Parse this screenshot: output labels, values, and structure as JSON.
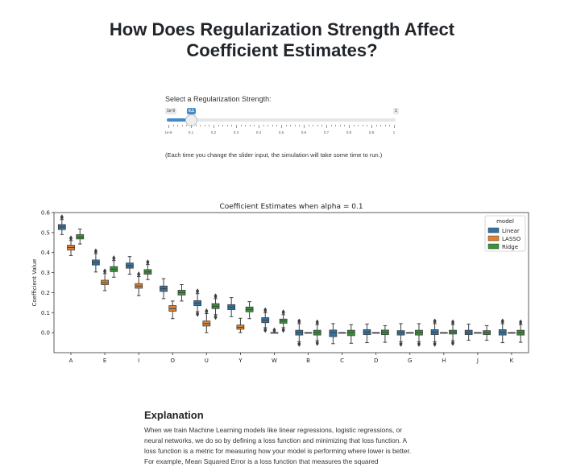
{
  "page": {
    "title_line1": "How Does Regularization Strength Affect",
    "title_line2": "Coefficient Estimates?"
  },
  "slider": {
    "label": "Select a Regularization Strength:",
    "min_label": "1e-9",
    "max_label": "1",
    "value_label": "0.1",
    "value": 0.1,
    "min": 0,
    "max": 1,
    "tick_labels": [
      "1e-9",
      "0.1",
      "0.2",
      "0.3",
      "0.4",
      "0.5",
      "0.6",
      "0.7",
      "0.8",
      "0.9",
      "1"
    ]
  },
  "note": "(Each time you change the slider input, the simulation will take some time to run.)",
  "chart_data": {
    "type": "box",
    "title": "Coefficient Estimates when alpha = 0.1",
    "xlabel": "",
    "ylabel": "Coefficient Value",
    "ylim": [
      -0.1,
      0.6
    ],
    "yticks": [
      0.0,
      0.1,
      0.2,
      0.3,
      0.4,
      0.5,
      0.6
    ],
    "ytick_labels": [
      "0.0",
      "0.1",
      "0.2",
      "0.3",
      "0.4",
      "0.5",
      "0.6"
    ],
    "categories": [
      "A",
      "E",
      "I",
      "O",
      "U",
      "Y",
      "W",
      "B",
      "C",
      "D",
      "G",
      "H",
      "J",
      "K"
    ],
    "legend": {
      "title": "model",
      "position": "top-right"
    },
    "series": [
      {
        "name": "Linear",
        "color": "#3274a1",
        "boxes": [
          {
            "q1": 0.515,
            "med": 0.528,
            "q3": 0.54,
            "lo": 0.49,
            "hi": 0.565,
            "out_hi": true,
            "out_lo": false
          },
          {
            "q1": 0.338,
            "med": 0.35,
            "q3": 0.363,
            "lo": 0.303,
            "hi": 0.395,
            "out_hi": true,
            "out_lo": false
          },
          {
            "q1": 0.322,
            "med": 0.335,
            "q3": 0.348,
            "lo": 0.292,
            "hi": 0.38,
            "out_hi": false,
            "out_lo": false
          },
          {
            "q1": 0.206,
            "med": 0.22,
            "q3": 0.233,
            "lo": 0.17,
            "hi": 0.27,
            "out_hi": false,
            "out_lo": false
          },
          {
            "q1": 0.135,
            "med": 0.148,
            "q3": 0.16,
            "lo": 0.105,
            "hi": 0.195,
            "out_hi": true,
            "out_lo": true
          },
          {
            "q1": 0.115,
            "med": 0.128,
            "q3": 0.14,
            "lo": 0.08,
            "hi": 0.175,
            "out_hi": false,
            "out_lo": false
          },
          {
            "q1": 0.05,
            "med": 0.062,
            "q3": 0.075,
            "lo": 0.025,
            "hi": 0.1,
            "out_hi": true,
            "out_lo": true
          },
          {
            "q1": -0.012,
            "med": 0.0,
            "q3": 0.012,
            "lo": -0.045,
            "hi": 0.045,
            "out_hi": true,
            "out_lo": true
          },
          {
            "q1": -0.02,
            "med": 0.0,
            "q3": 0.013,
            "lo": -0.055,
            "hi": 0.045,
            "out_hi": false,
            "out_lo": false
          },
          {
            "q1": -0.01,
            "med": 0.003,
            "q3": 0.015,
            "lo": -0.05,
            "hi": 0.043,
            "out_hi": false,
            "out_lo": false
          },
          {
            "q1": -0.012,
            "med": 0.0,
            "q3": 0.01,
            "lo": -0.045,
            "hi": 0.045,
            "out_hi": false,
            "out_lo": true
          },
          {
            "q1": -0.01,
            "med": 0.003,
            "q3": 0.015,
            "lo": -0.045,
            "hi": 0.045,
            "out_hi": true,
            "out_lo": true
          },
          {
            "q1": -0.01,
            "med": 0.0,
            "q3": 0.012,
            "lo": -0.038,
            "hi": 0.043,
            "out_hi": false,
            "out_lo": false
          },
          {
            "q1": -0.012,
            "med": 0.002,
            "q3": 0.015,
            "lo": -0.05,
            "hi": 0.045,
            "out_hi": true,
            "out_lo": false
          }
        ]
      },
      {
        "name": "LASSO",
        "color": "#e1812c",
        "boxes": [
          {
            "q1": 0.413,
            "med": 0.425,
            "q3": 0.437,
            "lo": 0.385,
            "hi": 0.46,
            "out_hi": true,
            "out_lo": false
          },
          {
            "q1": 0.24,
            "med": 0.25,
            "q3": 0.262,
            "lo": 0.21,
            "hi": 0.295,
            "out_hi": true,
            "out_lo": false
          },
          {
            "q1": 0.222,
            "med": 0.233,
            "q3": 0.245,
            "lo": 0.185,
            "hi": 0.28,
            "out_hi": true,
            "out_lo": false
          },
          {
            "q1": 0.107,
            "med": 0.12,
            "q3": 0.135,
            "lo": 0.07,
            "hi": 0.158,
            "out_hi": false,
            "out_lo": false
          },
          {
            "q1": 0.033,
            "med": 0.045,
            "q3": 0.058,
            "lo": 0.0,
            "hi": 0.095,
            "out_hi": true,
            "out_lo": false
          },
          {
            "q1": 0.017,
            "med": 0.027,
            "q3": 0.038,
            "lo": 0.0,
            "hi": 0.072,
            "out_hi": false,
            "out_lo": false
          },
          {
            "q1": 0.0,
            "med": 0.0,
            "q3": 0.0,
            "lo": 0.0,
            "hi": 0.0,
            "out_hi": true,
            "out_lo": false
          },
          {
            "q1": 0.0,
            "med": 0.0,
            "q3": 0.0,
            "lo": 0.0,
            "hi": 0.0,
            "out_hi": false,
            "out_lo": false
          },
          {
            "q1": 0.0,
            "med": 0.0,
            "q3": 0.0,
            "lo": 0.0,
            "hi": 0.0,
            "out_hi": false,
            "out_lo": false
          },
          {
            "q1": 0.0,
            "med": 0.0,
            "q3": 0.0,
            "lo": 0.0,
            "hi": 0.0,
            "out_hi": false,
            "out_lo": false
          },
          {
            "q1": 0.0,
            "med": 0.0,
            "q3": 0.0,
            "lo": 0.0,
            "hi": 0.0,
            "out_hi": false,
            "out_lo": false
          },
          {
            "q1": 0.0,
            "med": 0.0,
            "q3": 0.0,
            "lo": 0.0,
            "hi": 0.0,
            "out_hi": false,
            "out_lo": false
          },
          {
            "q1": 0.0,
            "med": 0.0,
            "q3": 0.0,
            "lo": 0.0,
            "hi": 0.0,
            "out_hi": false,
            "out_lo": false
          },
          {
            "q1": 0.0,
            "med": 0.0,
            "q3": 0.0,
            "lo": 0.0,
            "hi": 0.0,
            "out_hi": false,
            "out_lo": false
          }
        ]
      },
      {
        "name": "Ridge",
        "color": "#3a923a",
        "boxes": [
          {
            "q1": 0.468,
            "med": 0.478,
            "q3": 0.49,
            "lo": 0.443,
            "hi": 0.518,
            "out_hi": false,
            "out_lo": false
          },
          {
            "q1": 0.305,
            "med": 0.317,
            "q3": 0.33,
            "lo": 0.277,
            "hi": 0.36,
            "out_hi": true,
            "out_lo": false
          },
          {
            "q1": 0.292,
            "med": 0.303,
            "q3": 0.315,
            "lo": 0.265,
            "hi": 0.34,
            "out_hi": true,
            "out_lo": false
          },
          {
            "q1": 0.188,
            "med": 0.2,
            "q3": 0.212,
            "lo": 0.158,
            "hi": 0.24,
            "out_hi": false,
            "out_lo": false
          },
          {
            "q1": 0.12,
            "med": 0.132,
            "q3": 0.145,
            "lo": 0.09,
            "hi": 0.17,
            "out_hi": true,
            "out_lo": true
          },
          {
            "q1": 0.104,
            "med": 0.116,
            "q3": 0.128,
            "lo": 0.07,
            "hi": 0.155,
            "out_hi": false,
            "out_lo": false
          },
          {
            "q1": 0.047,
            "med": 0.058,
            "q3": 0.068,
            "lo": 0.025,
            "hi": 0.09,
            "out_hi": true,
            "out_lo": true
          },
          {
            "q1": -0.012,
            "med": 0.0,
            "q3": 0.012,
            "lo": -0.04,
            "hi": 0.04,
            "out_hi": true,
            "out_lo": true
          },
          {
            "q1": -0.015,
            "med": 0.0,
            "q3": 0.012,
            "lo": -0.053,
            "hi": 0.04,
            "out_hi": false,
            "out_lo": false
          },
          {
            "q1": -0.01,
            "med": 0.002,
            "q3": 0.013,
            "lo": -0.048,
            "hi": 0.035,
            "out_hi": false,
            "out_lo": false
          },
          {
            "q1": -0.012,
            "med": 0.0,
            "q3": 0.012,
            "lo": -0.045,
            "hi": 0.045,
            "out_hi": false,
            "out_lo": true
          },
          {
            "q1": -0.007,
            "med": 0.003,
            "q3": 0.012,
            "lo": -0.04,
            "hi": 0.04,
            "out_hi": true,
            "out_lo": true
          },
          {
            "q1": -0.01,
            "med": 0.0,
            "q3": 0.01,
            "lo": -0.038,
            "hi": 0.035,
            "out_hi": false,
            "out_lo": false
          },
          {
            "q1": -0.012,
            "med": 0.0,
            "q3": 0.012,
            "lo": -0.048,
            "hi": 0.04,
            "out_hi": true,
            "out_lo": false
          }
        ]
      }
    ]
  },
  "explanation": {
    "heading": "Explanation",
    "paragraph": "When we train Machine Learning models like linear regressions, logistic regressions, or neural networks, we do so by defining a loss function and minimizing that loss function. A loss function is a metric for measuring how your model is performing where lower is better. For example, Mean Squared Error is a loss function that measures the squared"
  }
}
